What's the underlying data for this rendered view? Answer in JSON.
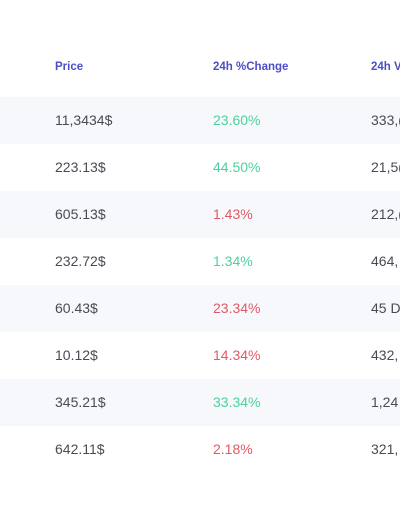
{
  "table": {
    "headers": {
      "price": "Price",
      "change": "24h %Change",
      "volume": "24h V"
    },
    "rows": [
      {
        "price": "11,3434$",
        "change": "23.60%",
        "change_dir": "pos",
        "volume": "333,("
      },
      {
        "price": "223.13$",
        "change": "44.50%",
        "change_dir": "pos",
        "volume": "21,5("
      },
      {
        "price": "605.13$",
        "change": "1.43%",
        "change_dir": "neg",
        "volume": "212,("
      },
      {
        "price": "232.72$",
        "change": "1.34%",
        "change_dir": "pos",
        "volume": "464,"
      },
      {
        "price": "60.43$",
        "change": "23.34%",
        "change_dir": "neg",
        "volume": "45 D"
      },
      {
        "price": "10.12$",
        "change": "14.34%",
        "change_dir": "neg",
        "volume": "432,"
      },
      {
        "price": "345.21$",
        "change": "33.34%",
        "change_dir": "pos",
        "volume": "1,24"
      },
      {
        "price": "642.11$",
        "change": "2.18%",
        "change_dir": "neg",
        "volume": "321,"
      }
    ]
  },
  "colors": {
    "header": "#4b4fc7",
    "positive": "#4cd19b",
    "negative": "#e05a66",
    "row_alt": "#f7f8fb",
    "text": "#4a4a55"
  }
}
